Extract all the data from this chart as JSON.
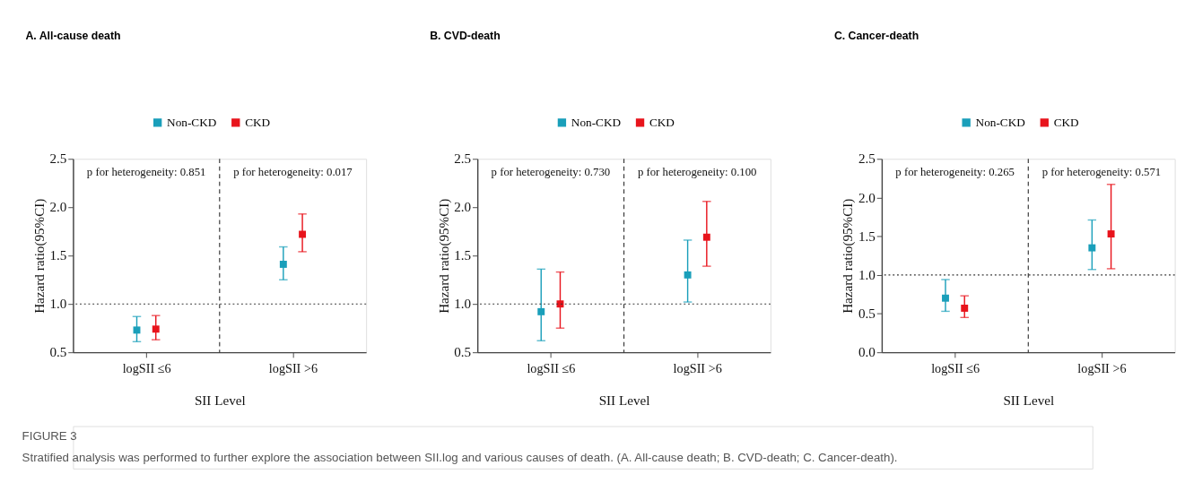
{
  "chart_data": [
    {
      "type": "scatter",
      "title": "A. All-cause death",
      "xlabel": "SII Level",
      "ylabel": "Hazard ratio(95%CI)",
      "categories": [
        "logSII ≤6",
        "logSII >6"
      ],
      "series": [
        {
          "name": "Non-CKD",
          "color": "#1a9fba",
          "values": [
            0.73,
            1.41
          ],
          "errors": [
            [
              0.61,
              0.87
            ],
            [
              1.25,
              1.59
            ]
          ]
        },
        {
          "name": "CKD",
          "color": "#e8141c",
          "values": [
            0.74,
            1.72
          ],
          "errors": [
            [
              0.63,
              0.88
            ],
            [
              1.54,
              1.93
            ]
          ]
        }
      ],
      "ylim": [
        0.5,
        2.5
      ],
      "yticks": [
        0.5,
        {
          "value": 1,
          "label": "1.0"
        },
        1.5,
        {
          "value": 2,
          "label": "2.0"
        },
        2.5
      ],
      "marker": "square",
      "legend": "top",
      "grid": "x",
      "ref_lines": [
        {
          "axis": "y",
          "value": 1,
          "line_style": "dotted"
        }
      ],
      "annotations": [
        "p for heterogeneity: 0.851",
        "p for heterogeneity: 0.017",
        "FIGURE 3",
        "Stratified analysis was performed to further explore the association between SII.log and various causes of death. (A. All-cause death; B. CVD-death; C. Cancer-death)."
      ]
    },
    {
      "type": "scatter",
      "title": "B. CVD-death",
      "xlabel": "SII Level",
      "ylabel": "Hazard ratio(95%CI)",
      "categories": [
        "logSII ≤6",
        "logSII >6"
      ],
      "series": [
        {
          "name": "Non-CKD",
          "color": "#1a9fba",
          "values": [
            0.92,
            1.3
          ],
          "errors": [
            [
              0.62,
              1.36
            ],
            [
              1.02,
              1.66
            ]
          ]
        },
        {
          "name": "CKD",
          "color": "#e8141c",
          "values": [
            1.0,
            1.69
          ],
          "errors": [
            [
              0.75,
              1.33
            ],
            [
              1.39,
              2.06
            ]
          ]
        }
      ],
      "ylim": [
        0.5,
        2.5
      ],
      "yticks": [
        0.5,
        {
          "value": 1,
          "label": "1.0"
        },
        1.5,
        {
          "value": 2,
          "label": "2.0"
        },
        2.5
      ],
      "marker": "square",
      "legend": "top",
      "grid": "x",
      "ref_lines": [
        {
          "axis": "y",
          "value": 1,
          "line_style": "dotted"
        }
      ],
      "annotations": [
        "p for heterogeneity: 0.730",
        "p for heterogeneity: 0.100"
      ]
    },
    {
      "type": "scatter",
      "title": "C. Cancer-death",
      "xlabel": "SII Level",
      "ylabel": "Hazard ratio(95%CI)",
      "categories": [
        "logSII ≤6",
        "logSII >6"
      ],
      "series": [
        {
          "name": "Non-CKD",
          "color": "#1a9fba",
          "values": [
            0.7,
            1.35
          ],
          "errors": [
            [
              0.53,
              0.94
            ],
            [
              1.07,
              1.71
            ]
          ]
        },
        {
          "name": "CKD",
          "color": "#e8141c",
          "values": [
            0.57,
            1.53
          ],
          "errors": [
            [
              0.45,
              0.73
            ],
            [
              1.08,
              2.17
            ]
          ]
        }
      ],
      "ylim": [
        0,
        2.5
      ],
      "yticks": [
        {
          "value": 0,
          "label": "0.0"
        },
        0.5,
        {
          "value": 1,
          "label": "1.0"
        },
        1.5,
        {
          "value": 2,
          "label": "2.0"
        },
        2.5
      ],
      "marker": "square",
      "legend": "top",
      "grid": "x",
      "ref_lines": [
        {
          "axis": "y",
          "value": 1,
          "line_style": "dotted"
        }
      ],
      "annotations": [
        "p for heterogeneity: 0.265",
        "p for heterogeneity: 0.571"
      ]
    }
  ]
}
